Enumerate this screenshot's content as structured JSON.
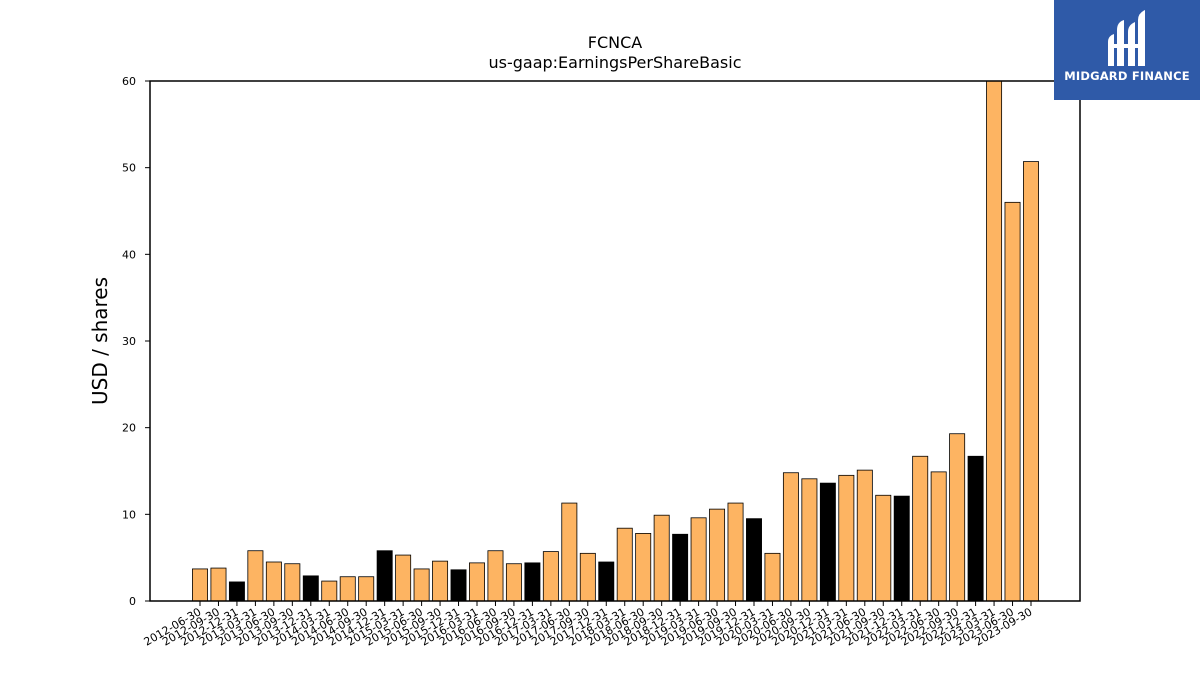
{
  "brand": {
    "name": "MIDGARD FINANCE",
    "bg_color": "#2f5aa8"
  },
  "colors": {
    "orange": "#fdb462",
    "black": "#000000"
  },
  "chart_data": {
    "type": "bar",
    "title": "FCNCA",
    "subtitle": "us-gaap:EarningsPerShareBasic",
    "xlabel": "",
    "ylabel": "USD / shares",
    "ylim": [
      0,
      60
    ],
    "yticks": [
      0,
      10,
      20,
      30,
      40,
      50,
      60
    ],
    "grid": false,
    "categories": [
      "2012-06-30",
      "2012-09-30",
      "2012-12-31",
      "2013-03-31",
      "2013-06-30",
      "2013-09-30",
      "2013-12-31",
      "2014-03-31",
      "2014-06-30",
      "2014-09-30",
      "2014-12-31",
      "2015-03-31",
      "2015-06-30",
      "2015-09-30",
      "2015-12-31",
      "2016-03-31",
      "2016-06-30",
      "2016-09-30",
      "2016-12-31",
      "2017-03-31",
      "2017-06-30",
      "2017-09-30",
      "2017-12-31",
      "2018-03-31",
      "2018-06-30",
      "2018-09-30",
      "2018-12-31",
      "2019-03-31",
      "2019-06-30",
      "2019-09-30",
      "2019-12-31",
      "2020-03-31",
      "2020-06-30",
      "2020-09-30",
      "2020-12-31",
      "2021-03-31",
      "2021-06-30",
      "2021-09-30",
      "2021-12-31",
      "2022-03-31",
      "2022-06-30",
      "2022-09-30",
      "2022-12-31",
      "2023-03-31",
      "2023-06-30",
      "2023-09-30"
    ],
    "values": [
      3.7,
      3.8,
      2.2,
      5.8,
      4.5,
      4.3,
      2.9,
      2.3,
      2.8,
      2.8,
      5.8,
      5.3,
      3.7,
      4.6,
      3.6,
      4.4,
      5.8,
      4.3,
      4.4,
      5.7,
      11.3,
      5.5,
      4.5,
      8.4,
      7.8,
      9.9,
      7.7,
      9.6,
      10.6,
      11.3,
      9.5,
      5.5,
      14.8,
      14.1,
      13.6,
      14.5,
      15.1,
      12.2,
      12.1,
      16.7,
      14.9,
      19.3,
      16.7,
      60.5,
      46.0,
      50.7
    ],
    "bar_colors": [
      "orange",
      "orange",
      "black",
      "orange",
      "orange",
      "orange",
      "black",
      "orange",
      "orange",
      "orange",
      "black",
      "orange",
      "orange",
      "orange",
      "black",
      "orange",
      "orange",
      "orange",
      "black",
      "orange",
      "orange",
      "orange",
      "black",
      "orange",
      "orange",
      "orange",
      "black",
      "orange",
      "orange",
      "orange",
      "black",
      "orange",
      "orange",
      "orange",
      "black",
      "orange",
      "orange",
      "orange",
      "black",
      "orange",
      "orange",
      "orange",
      "black",
      "orange",
      "orange",
      "orange"
    ]
  }
}
